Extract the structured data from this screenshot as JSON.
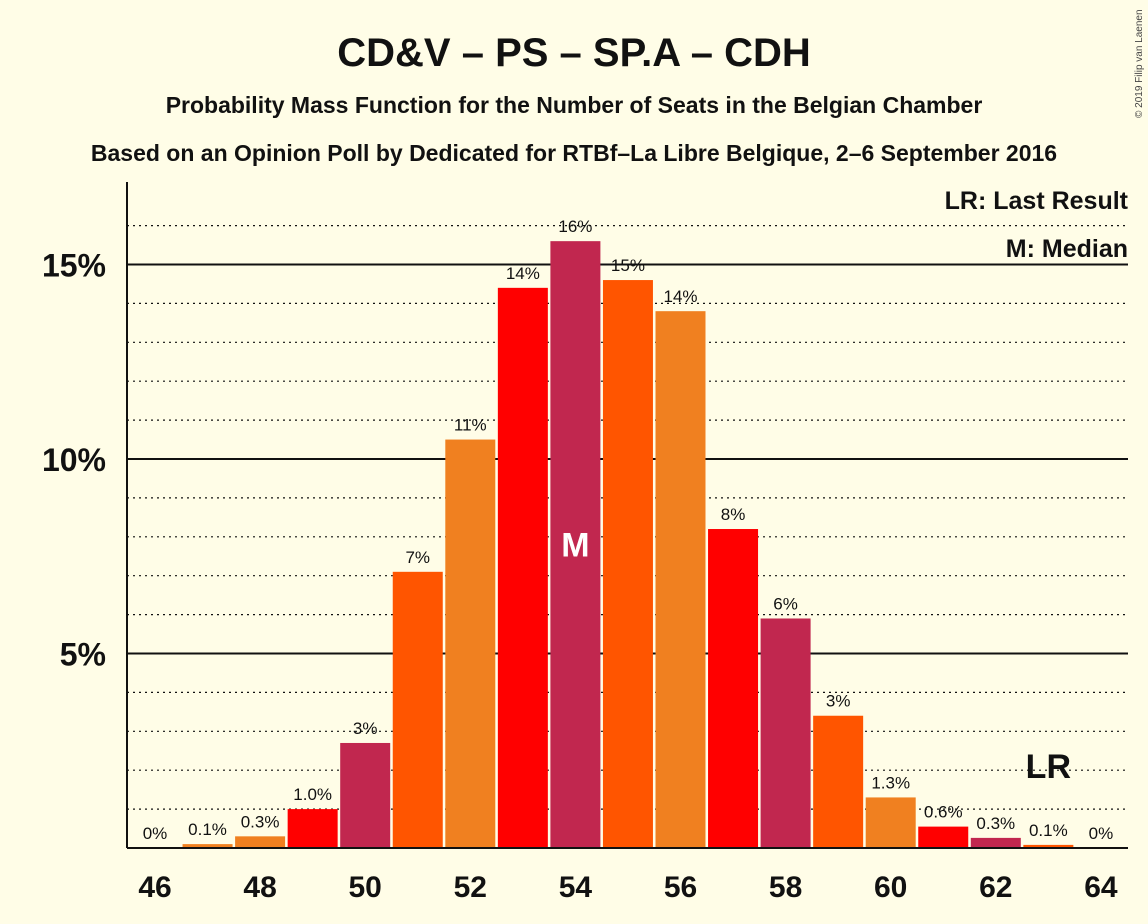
{
  "title": "CD&V – PS – SP.A – CDH",
  "subtitle1": "Probability Mass Function for the Number of Seats in the Belgian Chamber",
  "subtitle2": "Based on an Opinion Poll by Dedicated for RTBf–La Libre Belgique, 2–6 September 2016",
  "copyright": "© 2019 Filip van Laenen",
  "legend": {
    "lr": "LR: Last Result",
    "m": "M: Median"
  },
  "markers": {
    "median_text": "M",
    "median_seat": 54,
    "lr_text": "LR",
    "lr_seat": 63
  },
  "colors": {
    "red": "#FF0000",
    "crimson": "#C1274F",
    "orange": "#FF5500",
    "amber": "#F08020",
    "background": "#FFFDE7"
  },
  "chart_data": {
    "type": "bar",
    "x": [
      46,
      47,
      48,
      49,
      50,
      51,
      52,
      53,
      54,
      55,
      56,
      57,
      58,
      59,
      60,
      61,
      62,
      63,
      64
    ],
    "values": [
      0,
      0.1,
      0.3,
      1.0,
      2.7,
      7.1,
      10.5,
      14.4,
      15.6,
      14.6,
      13.8,
      8.2,
      5.9,
      3.4,
      1.3,
      0.55,
      0.26,
      0.08,
      0
    ],
    "labels": [
      "0%",
      "0.1%",
      "0.3%",
      "1.0%",
      "3%",
      "7%",
      "11%",
      "14%",
      "16%",
      "15%",
      "14%",
      "8%",
      "6%",
      "3%",
      "1.3%",
      "0.6%",
      "0.3%",
      "0.1%",
      "0%"
    ],
    "bar_colors": [
      "#C1274F",
      "#F08020",
      "#F08020",
      "#FF0000",
      "#C1274F",
      "#FF5500",
      "#F08020",
      "#FF0000",
      "#C1274F",
      "#FF5500",
      "#F08020",
      "#FF0000",
      "#C1274F",
      "#FF5500",
      "#F08020",
      "#FF0000",
      "#C1274F",
      "#FF5500",
      "#F08020"
    ],
    "xticks": [
      46,
      48,
      50,
      52,
      54,
      56,
      58,
      60,
      62,
      64
    ],
    "yticks": [
      {
        "value": 5,
        "label": "5%"
      },
      {
        "value": 10,
        "label": "10%"
      },
      {
        "value": 15,
        "label": "15%"
      }
    ],
    "ylim": [
      0,
      17
    ],
    "grid": "dotted every 1%, solid every 5%"
  }
}
